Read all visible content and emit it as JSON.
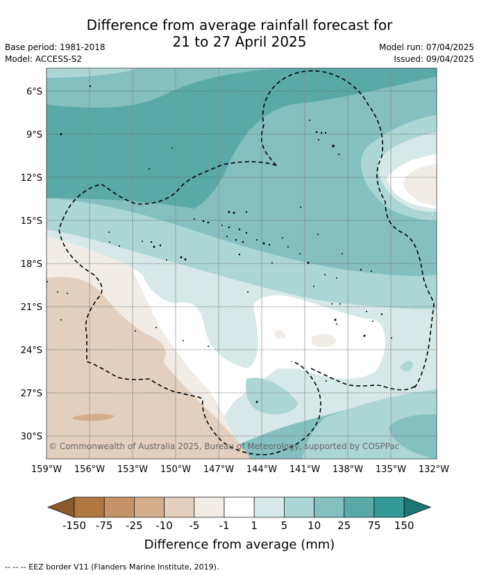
{
  "title_line1": "Difference from average rainfall forecast for",
  "title_line2": "21 to 27 April 2025",
  "base_period": "Base period: 1981-2018",
  "model": "Model: ACCESS-S2",
  "model_run": "Model run: 07/04/2025",
  "issued": "Issued: 09/04/2025",
  "copyright": "© Commonwealth of Australia 2025, Bureau of Meteorology, supported by COSPPac",
  "lon_labels": [
    "159°W",
    "156°W",
    "153°W",
    "150°W",
    "147°W",
    "144°W",
    "141°W",
    "138°W",
    "135°W",
    "132°W"
  ],
  "lat_labels": [
    "6°S",
    "9°S",
    "12°S",
    "15°S",
    "18°S",
    "21°S",
    "24°S",
    "27°S",
    "30°S"
  ],
  "colorbar": {
    "ticks": [
      "-150",
      "-75",
      "-25",
      "-10",
      "-5",
      "-1",
      "1",
      "5",
      "10",
      "25",
      "75",
      "150"
    ],
    "colors": [
      "#8c5a2b",
      "#b07840",
      "#c49468",
      "#d4ae8c",
      "#e3cfbd",
      "#f2ece6",
      "#ffffff",
      "#d6e9e8",
      "#acd6d4",
      "#84c0bf",
      "#5aa9a9",
      "#339a98",
      "#1c7474"
    ],
    "title": "Difference from average (mm)"
  },
  "footnote": "-- -- -- EEZ border V11 (Flanders Marine Institute, 2019)."
}
